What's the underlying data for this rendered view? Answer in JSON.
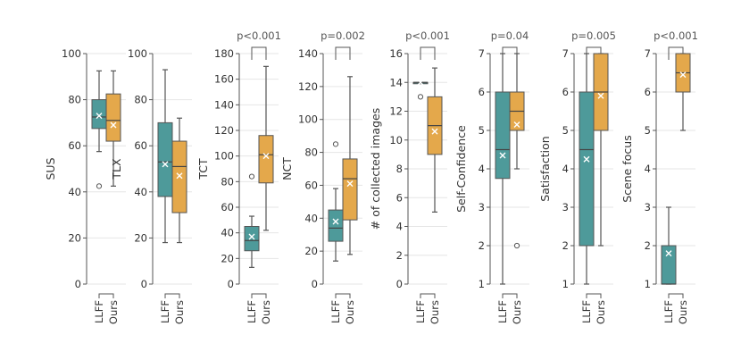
{
  "colors": {
    "LLFF": "#4e9a9a",
    "Ours": "#e4a84b"
  },
  "chart_data": [
    {
      "type": "box",
      "ylabel": "SUS",
      "ylim": [
        0,
        100
      ],
      "yticks": [
        0,
        20,
        40,
        60,
        80,
        100
      ],
      "tick_labels": [
        "0",
        "20",
        "40",
        "60",
        "80",
        "100"
      ],
      "categories": [
        "LLFF",
        "Ours"
      ],
      "pvalue": "",
      "series": [
        {
          "name": "LLFF",
          "whisker_low": 57.5,
          "q1": 67.5,
          "median": 72.5,
          "q3": 80,
          "whisker_high": 92.5,
          "mean": 73,
          "outliers": [
            42.5
          ]
        },
        {
          "name": "Ours",
          "whisker_low": 42.5,
          "q1": 62,
          "median": 71,
          "q3": 82.5,
          "whisker_high": 92.5,
          "mean": 69,
          "outliers": []
        }
      ]
    },
    {
      "type": "box",
      "ylabel": "TLX",
      "ylim": [
        0,
        100
      ],
      "yticks": [
        0,
        20,
        40,
        60,
        80,
        100
      ],
      "tick_labels": [
        "0",
        "20",
        "40",
        "60",
        "80",
        "100"
      ],
      "categories": [
        "LLFF",
        "Ours"
      ],
      "pvalue": "",
      "series": [
        {
          "name": "LLFF",
          "whisker_low": 18,
          "q1": 38,
          "median": 53,
          "q3": 70,
          "whisker_high": 93,
          "mean": 52,
          "outliers": []
        },
        {
          "name": "Ours",
          "whisker_low": 18,
          "q1": 31,
          "median": 51,
          "q3": 62,
          "whisker_high": 72,
          "mean": 47,
          "outliers": []
        }
      ]
    },
    {
      "type": "box",
      "ylabel": "TCT",
      "ylim": [
        0,
        180
      ],
      "yticks": [
        0,
        20,
        40,
        60,
        80,
        100,
        120,
        140,
        160,
        180
      ],
      "tick_labels": [
        "0",
        "20",
        "40",
        "60",
        "80",
        "100",
        "120",
        "140",
        "160",
        "180"
      ],
      "categories": [
        "LLFF",
        "Ours"
      ],
      "pvalue": "p<0.001",
      "series": [
        {
          "name": "LLFF",
          "whisker_low": 13,
          "q1": 26,
          "median": 34,
          "q3": 45,
          "whisker_high": 53,
          "mean": 37,
          "outliers": [
            84
          ]
        },
        {
          "name": "Ours",
          "whisker_low": 42,
          "q1": 79,
          "median": 101,
          "q3": 116,
          "whisker_high": 170,
          "mean": 100,
          "outliers": []
        }
      ]
    },
    {
      "type": "box",
      "ylabel": "NCT",
      "ylim": [
        0,
        140
      ],
      "yticks": [
        0,
        20,
        40,
        60,
        80,
        100,
        120,
        140
      ],
      "tick_labels": [
        "0",
        "20",
        "40",
        "60",
        "80",
        "100",
        "120",
        "140"
      ],
      "categories": [
        "LLFF",
        "Ours"
      ],
      "pvalue": "p=0.002",
      "series": [
        {
          "name": "LLFF",
          "whisker_low": 14,
          "q1": 26,
          "median": 34,
          "q3": 45,
          "whisker_high": 58,
          "mean": 38,
          "outliers": [
            85
          ]
        },
        {
          "name": "Ours",
          "whisker_low": 18,
          "q1": 39,
          "median": 64,
          "q3": 76,
          "whisker_high": 126,
          "mean": 61,
          "outliers": []
        }
      ]
    },
    {
      "type": "box",
      "ylabel": "# of collected images",
      "ylim": [
        0,
        16
      ],
      "yticks": [
        0,
        2,
        4,
        6,
        8,
        10,
        12,
        14,
        16
      ],
      "tick_labels": [
        "0",
        "2",
        "4",
        "6",
        "8",
        "10",
        "12",
        "14",
        "16"
      ],
      "categories": [
        "LLFF",
        "Ours"
      ],
      "pvalue": "p<0.001",
      "series": [
        {
          "name": "LLFF",
          "whisker_low": 14,
          "q1": 14,
          "median": 14,
          "q3": 14,
          "whisker_high": 14,
          "mean": 14,
          "outliers": [
            13
          ]
        },
        {
          "name": "Ours",
          "whisker_low": 5,
          "q1": 9,
          "median": 11,
          "q3": 13,
          "whisker_high": 15,
          "mean": 10.6,
          "outliers": []
        }
      ]
    },
    {
      "type": "box",
      "ylabel": "Self-Confidence",
      "ylim": [
        1,
        7
      ],
      "yticks": [
        1,
        2,
        3,
        4,
        5,
        6,
        7
      ],
      "tick_labels": [
        "1",
        "2",
        "3",
        "4",
        "5",
        "6",
        "7"
      ],
      "categories": [
        "LLFF",
        "Ours"
      ],
      "pvalue": "p=0.04",
      "series": [
        {
          "name": "LLFF",
          "whisker_low": 1,
          "q1": 3.75,
          "median": 4.5,
          "q3": 6,
          "whisker_high": 7,
          "mean": 4.35,
          "outliers": []
        },
        {
          "name": "Ours",
          "whisker_low": 4,
          "q1": 5,
          "median": 5.5,
          "q3": 6,
          "whisker_high": 7,
          "mean": 5.15,
          "outliers": [
            2
          ]
        }
      ]
    },
    {
      "type": "box",
      "ylabel": "Satisfaction",
      "ylim": [
        1,
        7
      ],
      "yticks": [
        1,
        2,
        3,
        4,
        5,
        6,
        7
      ],
      "tick_labels": [
        "1",
        "2",
        "3",
        "4",
        "5",
        "6",
        "7"
      ],
      "categories": [
        "LLFF",
        "Ours"
      ],
      "pvalue": "p=0.005",
      "series": [
        {
          "name": "LLFF",
          "whisker_low": 1,
          "q1": 2,
          "median": 4.5,
          "q3": 6,
          "whisker_high": 7,
          "mean": 4.25,
          "outliers": []
        },
        {
          "name": "Ours",
          "whisker_low": 2,
          "q1": 5,
          "median": 6,
          "q3": 7,
          "whisker_high": 7,
          "mean": 5.9,
          "outliers": []
        }
      ]
    },
    {
      "type": "box",
      "ylabel": "Scene focus",
      "ylim": [
        1,
        7
      ],
      "yticks": [
        1,
        2,
        3,
        4,
        5,
        6,
        7
      ],
      "tick_labels": [
        "1",
        "2",
        "3",
        "4",
        "5",
        "6",
        "7"
      ],
      "categories": [
        "LLFF",
        "Ours"
      ],
      "pvalue": "p<0.001",
      "series": [
        {
          "name": "LLFF",
          "whisker_low": 1,
          "q1": 1,
          "median": 1,
          "q3": 2,
          "whisker_high": 3,
          "mean": 1.8,
          "outliers": []
        },
        {
          "name": "Ours",
          "whisker_low": 5,
          "q1": 6,
          "median": 6.5,
          "q3": 7,
          "whisker_high": 7,
          "mean": 6.45,
          "outliers": []
        }
      ]
    }
  ]
}
